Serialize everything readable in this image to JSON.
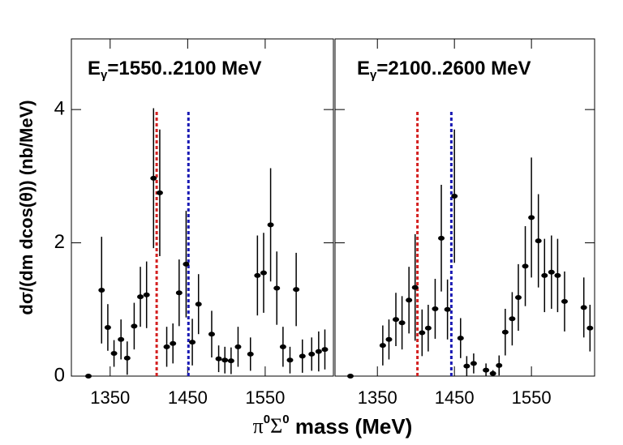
{
  "chart_data": [
    {
      "type": "errorbar",
      "title_parts": [
        "E",
        "γ",
        "=1550..2100 MeV"
      ],
      "ylabel": "dσ/(dm dcos(θ)) (nb/MeV)",
      "x": [
        1322,
        1339,
        1347,
        1355,
        1364,
        1372,
        1381,
        1389,
        1397,
        1406,
        1414,
        1423,
        1431,
        1439,
        1448,
        1456,
        1464,
        1481,
        1490,
        1498,
        1506,
        1515,
        1531,
        1540,
        1548,
        1557,
        1565,
        1573,
        1582,
        1590,
        1598,
        1610,
        1619,
        1627
      ],
      "values": [
        0,
        1.29,
        0.73,
        0.34,
        0.55,
        0.27,
        0.75,
        1.19,
        1.22,
        2.97,
        2.75,
        0.44,
        0.49,
        1.25,
        1.68,
        0.51,
        1.08,
        0.63,
        0.26,
        0.24,
        0.23,
        0.44,
        0.33,
        1.51,
        1.55,
        2.27,
        1.32,
        0.44,
        0.24,
        1.3,
        0.3,
        0.33,
        0.37,
        0.4
      ],
      "errors": [
        0,
        0.8,
        0.35,
        0.2,
        0.3,
        0.25,
        0.35,
        0.45,
        0.5,
        1.05,
        0.95,
        0.3,
        0.3,
        0.5,
        0.8,
        0.35,
        0.45,
        0.35,
        0.2,
        0.2,
        0.2,
        0.3,
        0.25,
        0.6,
        0.6,
        0.85,
        0.55,
        0.3,
        0.2,
        0.55,
        0.25,
        0.25,
        0.3,
        0.3
      ],
      "color": "#000000",
      "xlim": [
        1300,
        1638
      ],
      "xticks": [
        1350,
        1450,
        1550
      ],
      "ylim": [
        0,
        5.06
      ],
      "yticks": [
        0,
        2,
        4
      ],
      "vlines": [
        {
          "x": 1410,
          "ymax": 4,
          "color": "#d42020"
        },
        {
          "x": 1451,
          "ymax": 4,
          "color": "#1a1ab4"
        }
      ]
    },
    {
      "type": "errorbar",
      "title_parts": [
        "E",
        "γ",
        "=2100..2600 MeV"
      ],
      "x": [
        1315,
        1357,
        1365,
        1374,
        1382,
        1391,
        1399,
        1408,
        1416,
        1425,
        1433,
        1441,
        1450,
        1458,
        1466,
        1475,
        1491,
        1500,
        1508,
        1516,
        1525,
        1533,
        1542,
        1550,
        1559,
        1567,
        1576,
        1584,
        1593,
        1618,
        1626
      ],
      "values": [
        0,
        0.46,
        0.55,
        0.85,
        0.8,
        1.14,
        1.33,
        0.65,
        0.72,
        1.01,
        2.07,
        1.0,
        2.7,
        0.57,
        0.15,
        0.19,
        0.09,
        0.04,
        0.16,
        0.66,
        0.86,
        1.18,
        1.65,
        2.38,
        2.03,
        1.51,
        1.56,
        1.51,
        1.12,
        1.03,
        0.72
      ],
      "errors": [
        0,
        0.3,
        0.3,
        0.4,
        0.4,
        0.5,
        0.8,
        0.35,
        0.35,
        0.45,
        0.8,
        0.45,
        1.0,
        0.3,
        0.15,
        0.15,
        0.1,
        0.05,
        0.15,
        0.35,
        0.4,
        0.5,
        0.6,
        0.9,
        0.7,
        0.55,
        0.55,
        0.55,
        0.45,
        0.45,
        0.35
      ],
      "color": "#000000",
      "xlim": [
        1295,
        1632
      ],
      "xticks": [
        1350,
        1450,
        1550
      ],
      "ylim": [
        0,
        5.06
      ],
      "yticks": [
        0,
        2,
        4
      ],
      "vlines": [
        {
          "x": 1402,
          "ymax": 4,
          "color": "#d42020"
        },
        {
          "x": 1446,
          "ymax": 4,
          "color": "#1a1ab4"
        }
      ]
    }
  ],
  "xlabel_parts": [
    "π",
    "0",
    "Σ",
    "0",
    " mass (MeV)"
  ]
}
